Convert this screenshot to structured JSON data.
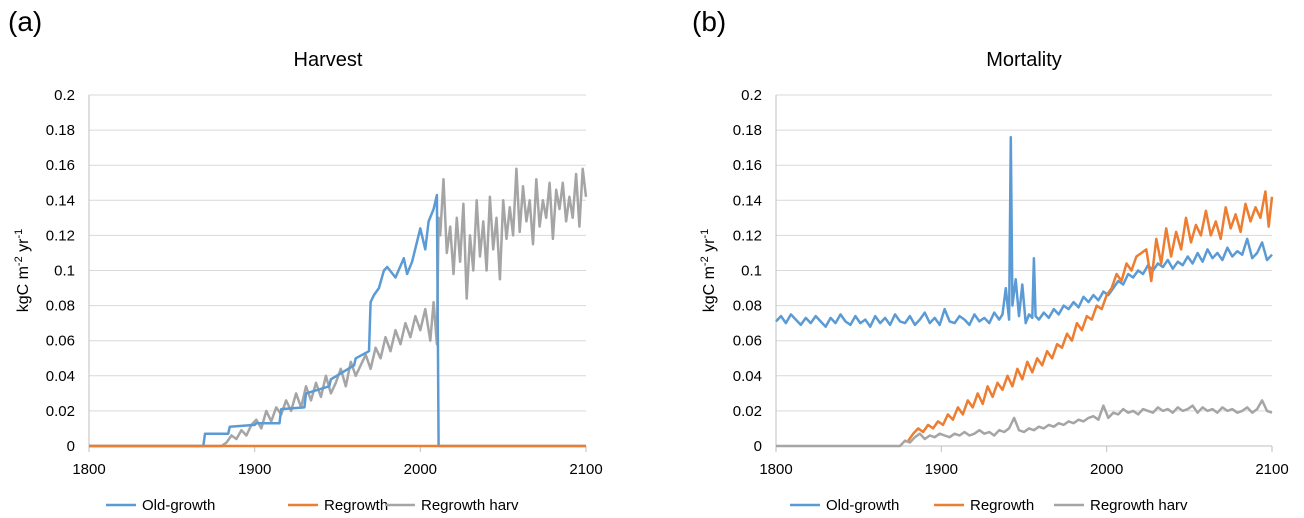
{
  "panels": [
    {
      "letter": "(a)"
    },
    {
      "letter": "(b)"
    }
  ],
  "colors": {
    "old_growth": "#5B9BD5",
    "regrowth": "#ED7D31",
    "regrowth_harv": "#A5A5A5",
    "grid": "#D9D9D9",
    "axis": "#BFBFBF"
  },
  "chart_data": [
    {
      "type": "line",
      "title": "Harvest",
      "xlabel": "",
      "ylabel": "kgC m-2 yr-1",
      "ylabel_parts": {
        "base": "kgC m",
        "exp1": "-2",
        "mid": " yr",
        "exp2": "-1"
      },
      "xlim": [
        1800,
        2100
      ],
      "ylim": [
        0,
        0.2
      ],
      "x_ticks": [
        "1800",
        "1900",
        "2000",
        "2100"
      ],
      "y_ticks": [
        "0",
        "0.02",
        "0.04",
        "0.06",
        "0.08",
        "0.1",
        "0.12",
        "0.14",
        "0.16",
        "0.18",
        "0.2"
      ],
      "grid": true,
      "legend_position": "bottom",
      "legend": [
        "Old-growth",
        "Regrowth",
        "Regrowth harv"
      ],
      "series": [
        {
          "name": "Old-growth",
          "color": "#5B9BD5",
          "x": [
            1800,
            1869,
            1870,
            1884,
            1885,
            1900,
            1901,
            1915,
            1916,
            1930,
            1931,
            1945,
            1946,
            1960,
            1961,
            1969,
            1970,
            1972,
            1975,
            1978,
            1980,
            1985,
            1990,
            1992,
            1995,
            2000,
            2003,
            2005,
            2008,
            2010,
            2011,
            2012,
            2100
          ],
          "y": [
            0,
            0,
            0.007,
            0.007,
            0.011,
            0.012,
            0.013,
            0.013,
            0.021,
            0.022,
            0.03,
            0.034,
            0.038,
            0.046,
            0.05,
            0.054,
            0.082,
            0.086,
            0.09,
            0.1,
            0.102,
            0.096,
            0.107,
            0.098,
            0.105,
            0.124,
            0.112,
            0.128,
            0.135,
            0.143,
            0.0,
            0.0,
            0.0
          ]
        },
        {
          "name": "Regrowth",
          "color": "#ED7D31",
          "x": [
            1800,
            2100
          ],
          "y": [
            0,
            0
          ]
        },
        {
          "name": "Regrowth harv",
          "color": "#A5A5A5",
          "x": [
            1800,
            1880,
            1883,
            1886,
            1889,
            1892,
            1895,
            1898,
            1901,
            1904,
            1907,
            1910,
            1913,
            1916,
            1919,
            1922,
            1925,
            1928,
            1931,
            1934,
            1937,
            1940,
            1943,
            1946,
            1949,
            1952,
            1955,
            1958,
            1961,
            1964,
            1967,
            1970,
            1973,
            1976,
            1979,
            1982,
            1985,
            1988,
            1991,
            1994,
            1997,
            2000,
            2003,
            2006,
            2008,
            2010,
            2011,
            2012,
            2014,
            2016,
            2018,
            2020,
            2022,
            2024,
            2026,
            2028,
            2030,
            2032,
            2034,
            2036,
            2038,
            2040,
            2042,
            2044,
            2046,
            2048,
            2050,
            2052,
            2054,
            2056,
            2058,
            2060,
            2062,
            2064,
            2066,
            2068,
            2070,
            2072,
            2074,
            2076,
            2078,
            2080,
            2082,
            2084,
            2086,
            2088,
            2090,
            2092,
            2094,
            2096,
            2098,
            2100
          ],
          "y": [
            0,
            0,
            0.002,
            0.006,
            0.004,
            0.009,
            0.006,
            0.012,
            0.015,
            0.01,
            0.02,
            0.014,
            0.022,
            0.018,
            0.026,
            0.02,
            0.03,
            0.022,
            0.034,
            0.026,
            0.036,
            0.028,
            0.04,
            0.03,
            0.036,
            0.044,
            0.034,
            0.048,
            0.04,
            0.046,
            0.052,
            0.044,
            0.056,
            0.05,
            0.062,
            0.054,
            0.066,
            0.058,
            0.07,
            0.062,
            0.074,
            0.066,
            0.078,
            0.06,
            0.082,
            0.058,
            0.13,
            0.12,
            0.152,
            0.11,
            0.125,
            0.098,
            0.13,
            0.105,
            0.138,
            0.084,
            0.12,
            0.1,
            0.14,
            0.108,
            0.128,
            0.1,
            0.142,
            0.112,
            0.13,
            0.095,
            0.14,
            0.118,
            0.136,
            0.12,
            0.158,
            0.122,
            0.148,
            0.128,
            0.14,
            0.115,
            0.152,
            0.125,
            0.14,
            0.13,
            0.15,
            0.118,
            0.146,
            0.135,
            0.15,
            0.128,
            0.142,
            0.13,
            0.155,
            0.125,
            0.158,
            0.142
          ]
        }
      ]
    },
    {
      "type": "line",
      "title": "Mortality",
      "xlabel": "",
      "ylabel": "kgC m-2 yr-1",
      "ylabel_parts": {
        "base": "kgC m",
        "exp1": "-2",
        "mid": " yr",
        "exp2": "-1"
      },
      "xlim": [
        1800,
        2100
      ],
      "ylim": [
        0,
        0.2
      ],
      "x_ticks": [
        "1800",
        "1900",
        "2000",
        "2100"
      ],
      "y_ticks": [
        "0",
        "0.02",
        "0.04",
        "0.06",
        "0.08",
        "0.1",
        "0.12",
        "0.14",
        "0.16",
        "0.18",
        "0.2"
      ],
      "grid": true,
      "legend_position": "bottom",
      "legend": [
        "Old-growth",
        "Regrowth",
        "Regrowth harv"
      ],
      "series": [
        {
          "name": "Old-growth",
          "color": "#5B9BD5",
          "x": [
            1800,
            1803,
            1806,
            1809,
            1812,
            1815,
            1818,
            1821,
            1824,
            1827,
            1830,
            1833,
            1836,
            1839,
            1842,
            1845,
            1848,
            1851,
            1854,
            1857,
            1860,
            1863,
            1866,
            1869,
            1872,
            1875,
            1878,
            1881,
            1884,
            1887,
            1890,
            1893,
            1896,
            1899,
            1902,
            1905,
            1908,
            1911,
            1914,
            1917,
            1920,
            1923,
            1926,
            1929,
            1932,
            1935,
            1937,
            1939,
            1941,
            1942,
            1943,
            1945,
            1947,
            1949,
            1951,
            1953,
            1955,
            1956,
            1957,
            1959,
            1962,
            1965,
            1968,
            1971,
            1974,
            1977,
            1980,
            1983,
            1986,
            1989,
            1992,
            1995,
            1998,
            2001,
            2004,
            2007,
            2010,
            2013,
            2016,
            2019,
            2022,
            2025,
            2028,
            2031,
            2034,
            2037,
            2040,
            2043,
            2046,
            2049,
            2052,
            2055,
            2058,
            2061,
            2064,
            2067,
            2070,
            2073,
            2076,
            2079,
            2082,
            2085,
            2088,
            2091,
            2094,
            2097,
            2100
          ],
          "y": [
            0.071,
            0.074,
            0.07,
            0.075,
            0.072,
            0.069,
            0.073,
            0.07,
            0.074,
            0.071,
            0.068,
            0.073,
            0.07,
            0.075,
            0.071,
            0.069,
            0.074,
            0.07,
            0.072,
            0.068,
            0.074,
            0.07,
            0.073,
            0.069,
            0.075,
            0.071,
            0.07,
            0.074,
            0.069,
            0.072,
            0.076,
            0.07,
            0.073,
            0.069,
            0.078,
            0.071,
            0.07,
            0.074,
            0.072,
            0.069,
            0.075,
            0.071,
            0.073,
            0.07,
            0.076,
            0.072,
            0.075,
            0.09,
            0.072,
            0.176,
            0.08,
            0.095,
            0.074,
            0.092,
            0.07,
            0.075,
            0.073,
            0.107,
            0.074,
            0.072,
            0.076,
            0.073,
            0.078,
            0.075,
            0.08,
            0.078,
            0.082,
            0.079,
            0.085,
            0.082,
            0.086,
            0.083,
            0.088,
            0.086,
            0.09,
            0.094,
            0.092,
            0.098,
            0.096,
            0.1,
            0.098,
            0.103,
            0.1,
            0.104,
            0.102,
            0.106,
            0.101,
            0.105,
            0.103,
            0.108,
            0.104,
            0.11,
            0.105,
            0.112,
            0.107,
            0.11,
            0.106,
            0.113,
            0.108,
            0.111,
            0.109,
            0.118,
            0.107,
            0.11,
            0.116,
            0.106,
            0.109
          ]
        },
        {
          "name": "Regrowth",
          "color": "#ED7D31",
          "x": [
            1880,
            1883,
            1886,
            1889,
            1892,
            1895,
            1898,
            1901,
            1904,
            1907,
            1910,
            1913,
            1916,
            1919,
            1922,
            1925,
            1928,
            1931,
            1934,
            1937,
            1940,
            1943,
            1946,
            1949,
            1952,
            1955,
            1958,
            1961,
            1964,
            1967,
            1970,
            1973,
            1976,
            1979,
            1982,
            1985,
            1988,
            1991,
            1994,
            1997,
            2000,
            2003,
            2006,
            2009,
            2012,
            2015,
            2018,
            2021,
            2024,
            2027,
            2030,
            2033,
            2036,
            2039,
            2042,
            2045,
            2048,
            2051,
            2054,
            2057,
            2060,
            2063,
            2066,
            2069,
            2072,
            2075,
            2078,
            2081,
            2084,
            2087,
            2090,
            2093,
            2096,
            2098,
            2100
          ],
          "y": [
            0.003,
            0.007,
            0.01,
            0.008,
            0.012,
            0.01,
            0.014,
            0.012,
            0.018,
            0.015,
            0.022,
            0.018,
            0.026,
            0.022,
            0.03,
            0.024,
            0.034,
            0.028,
            0.036,
            0.032,
            0.04,
            0.034,
            0.044,
            0.038,
            0.048,
            0.042,
            0.05,
            0.046,
            0.054,
            0.05,
            0.058,
            0.056,
            0.064,
            0.06,
            0.07,
            0.066,
            0.074,
            0.072,
            0.08,
            0.078,
            0.086,
            0.09,
            0.098,
            0.094,
            0.104,
            0.1,
            0.108,
            0.11,
            0.112,
            0.094,
            0.118,
            0.104,
            0.124,
            0.108,
            0.122,
            0.112,
            0.13,
            0.116,
            0.126,
            0.12,
            0.134,
            0.12,
            0.128,
            0.118,
            0.136,
            0.124,
            0.132,
            0.122,
            0.138,
            0.128,
            0.136,
            0.13,
            0.145,
            0.125,
            0.142
          ]
        },
        {
          "name": "Regrowth harv",
          "color": "#A5A5A5",
          "x": [
            1800,
            1875,
            1878,
            1881,
            1884,
            1887,
            1890,
            1893,
            1896,
            1899,
            1902,
            1905,
            1908,
            1911,
            1914,
            1917,
            1920,
            1923,
            1926,
            1929,
            1932,
            1935,
            1938,
            1941,
            1944,
            1947,
            1950,
            1953,
            1956,
            1959,
            1962,
            1965,
            1968,
            1971,
            1974,
            1977,
            1980,
            1983,
            1986,
            1989,
            1992,
            1995,
            1998,
            2001,
            2004,
            2007,
            2010,
            2013,
            2016,
            2019,
            2022,
            2025,
            2028,
            2031,
            2034,
            2037,
            2040,
            2043,
            2046,
            2049,
            2052,
            2055,
            2058,
            2061,
            2064,
            2067,
            2070,
            2073,
            2076,
            2079,
            2082,
            2085,
            2088,
            2091,
            2094,
            2097,
            2100
          ],
          "y": [
            0,
            0,
            0.003,
            0.002,
            0.005,
            0.007,
            0.004,
            0.006,
            0.005,
            0.007,
            0.006,
            0.005,
            0.007,
            0.006,
            0.008,
            0.006,
            0.007,
            0.009,
            0.007,
            0.008,
            0.006,
            0.009,
            0.008,
            0.01,
            0.016,
            0.009,
            0.008,
            0.01,
            0.009,
            0.011,
            0.01,
            0.012,
            0.011,
            0.013,
            0.012,
            0.014,
            0.013,
            0.015,
            0.014,
            0.016,
            0.017,
            0.015,
            0.023,
            0.016,
            0.019,
            0.018,
            0.021,
            0.019,
            0.02,
            0.018,
            0.021,
            0.02,
            0.019,
            0.022,
            0.02,
            0.021,
            0.019,
            0.022,
            0.02,
            0.021,
            0.023,
            0.019,
            0.022,
            0.02,
            0.021,
            0.019,
            0.022,
            0.02,
            0.021,
            0.019,
            0.02,
            0.022,
            0.019,
            0.021,
            0.026,
            0.02,
            0.019
          ]
        }
      ]
    }
  ]
}
